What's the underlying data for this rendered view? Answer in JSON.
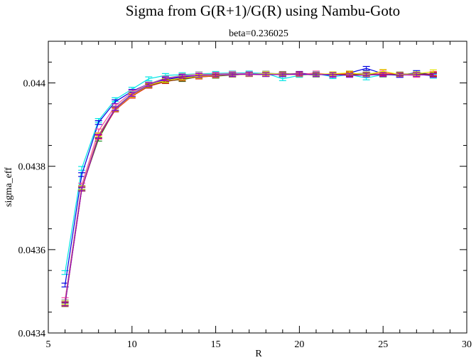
{
  "chart_data": {
    "type": "line",
    "title": "Sigma from G(R+1)/G(R)  using Nambu-Goto",
    "subtitle": "beta=0.236025",
    "xlabel": "R",
    "ylabel": "sigma_eff",
    "xlim": [
      5,
      30
    ],
    "ylim": [
      0.0434,
      0.0441
    ],
    "xticks": [
      5,
      10,
      15,
      20,
      25,
      30
    ],
    "yticks": [
      0.0434,
      0.0436,
      0.0438,
      0.044
    ],
    "ytick_labels": [
      "0.0434",
      "0.0436",
      "0.0438",
      "0.044"
    ],
    "grid": false,
    "x": [
      6,
      7,
      8,
      9,
      10,
      11,
      12,
      13,
      14,
      15,
      16,
      17,
      18,
      19,
      20,
      21,
      22,
      23,
      24,
      25,
      26,
      27,
      28
    ],
    "error_bar": 4.5e-06,
    "series": [
      {
        "color": "#00e5e5",
        "values": [
          0.043545,
          0.043795,
          0.04391,
          0.04396,
          0.043985,
          0.04401,
          0.044018,
          0.04402,
          0.044022,
          0.044023,
          0.044024,
          0.044024,
          0.044023,
          0.04401,
          0.044018,
          0.044022,
          0.044015,
          0.04402,
          0.044012,
          0.04402,
          0.044018,
          0.044022,
          0.044016
        ]
      },
      {
        "color": "#0000e0",
        "values": [
          0.043515,
          0.04378,
          0.043905,
          0.043955,
          0.04398,
          0.043998,
          0.044008,
          0.044014,
          0.044016,
          0.044018,
          0.04402,
          0.044021,
          0.044022,
          0.04402,
          0.044023,
          0.044021,
          0.044018,
          0.044024,
          0.044035,
          0.044022,
          0.044018,
          0.044025,
          0.04402
        ]
      },
      {
        "color": "#ff4da6",
        "values": [
          0.04348,
          0.043755,
          0.043885,
          0.043945,
          0.043978,
          0.043998,
          0.04401,
          0.044016,
          0.044019,
          0.044021,
          0.044023,
          0.044022,
          0.044021,
          0.044023,
          0.04402,
          0.044024,
          0.044019,
          0.044022,
          0.04402,
          0.044026,
          0.04402,
          0.044018,
          0.044023
        ]
      },
      {
        "color": "#a0a0a0",
        "values": [
          0.043475,
          0.04375,
          0.043875,
          0.04394,
          0.043975,
          0.043998,
          0.044012,
          0.044018,
          0.044022,
          0.04402,
          0.044022,
          0.04402,
          0.044024,
          0.044021,
          0.044022,
          0.04402,
          0.044022,
          0.044021,
          0.044024,
          0.04402,
          0.044022,
          0.04402,
          0.044018
        ]
      },
      {
        "color": "#1a8a1a",
        "values": [
          0.043472,
          0.043748,
          0.043865,
          0.043938,
          0.043972,
          0.043995,
          0.044005,
          0.044008,
          0.044015,
          0.044016,
          0.044019,
          0.044021,
          0.04402,
          0.044022,
          0.044021,
          0.044019,
          0.044022,
          0.04402,
          0.044021,
          0.044019,
          0.044021,
          0.044022,
          0.04402
        ]
      },
      {
        "color": "#ff2020",
        "values": [
          0.04347,
          0.043745,
          0.04387,
          0.043935,
          0.043968,
          0.043992,
          0.044003,
          0.04401,
          0.044014,
          0.044017,
          0.04402,
          0.04402,
          0.044021,
          0.04402,
          0.044022,
          0.04402,
          0.044021,
          0.044022,
          0.04402,
          0.044022,
          0.044021,
          0.04402,
          0.044022
        ]
      },
      {
        "color": "#8b4513",
        "values": [
          0.043468,
          0.043745,
          0.043872,
          0.043936,
          0.04397,
          0.043993,
          0.044004,
          0.044009,
          0.044015,
          0.044018,
          0.044019,
          0.044021,
          0.04402,
          0.044021,
          0.04402,
          0.044021,
          0.04402,
          0.04402,
          0.044021,
          0.04402,
          0.044021,
          0.044021,
          0.04402
        ]
      },
      {
        "color": "#e5e500",
        "values": [
          0.043472,
          0.043748,
          0.043875,
          0.043937,
          0.04397,
          0.043995,
          0.044006,
          0.044012,
          0.044016,
          0.044018,
          0.04402,
          0.04402,
          0.044022,
          0.044021,
          0.04402,
          0.044021,
          0.044022,
          0.044024,
          0.04402,
          0.044028,
          0.04402,
          0.044022,
          0.044027
        ]
      },
      {
        "color": "#9400d3",
        "values": [
          0.04347,
          0.043746,
          0.043872,
          0.043938,
          0.043972,
          0.043996,
          0.04401,
          0.044016,
          0.044018,
          0.044019,
          0.04402,
          0.044021,
          0.04402,
          0.04402,
          0.044021,
          0.04402,
          0.04402,
          0.044018,
          0.044019,
          0.04402,
          0.044019,
          0.04402,
          0.044018
        ]
      }
    ]
  }
}
